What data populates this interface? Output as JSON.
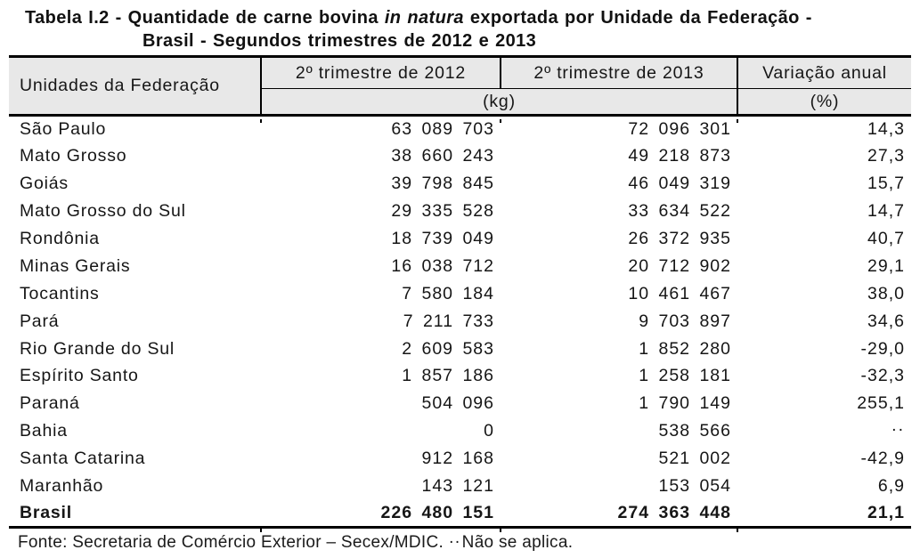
{
  "title": {
    "line1_normal": "Tabela I.2 - Quantidade de carne bovina ",
    "line1_italic": "in natura",
    "line1_rest": " exportada por Unidade da Federação -",
    "line2": "Brasil - Segundos trimestres de 2012 e 2013"
  },
  "header": {
    "units": "Unidades da Federação",
    "q2012": "2º trimestre de 2012",
    "q2013": "2º trimestre de 2013",
    "variation": "Variação anual",
    "kg": "(kg)",
    "pct": "(%)"
  },
  "chart_data": {
    "type": "table",
    "title": "Tabela I.2 - Quantidade de carne bovina in natura exportada por Unidade da Federação - Brasil - Segundos trimestres de 2012 e 2013",
    "columns": [
      "Unidades da Federação",
      "2º trimestre de 2012 (kg)",
      "2º trimestre de 2013 (kg)",
      "Variação anual (%)"
    ],
    "rows": [
      [
        "São Paulo",
        "63 089 703",
        "72 096 301",
        "14,3"
      ],
      [
        "Mato Grosso",
        "38 660 243",
        "49 218 873",
        "27,3"
      ],
      [
        "Goiás",
        "39 798 845",
        "46 049 319",
        "15,7"
      ],
      [
        "Mato Grosso do Sul",
        "29 335 528",
        "33 634 522",
        "14,7"
      ],
      [
        "Rondônia",
        "18 739 049",
        "26 372 935",
        "40,7"
      ],
      [
        "Minas Gerais",
        "16 038 712",
        "20 712 902",
        "29,1"
      ],
      [
        "Tocantins",
        "7 580 184",
        "10 461 467",
        "38,0"
      ],
      [
        "Pará",
        "7 211 733",
        "9 703 897",
        "34,6"
      ],
      [
        "Rio Grande do Sul",
        "2 609 583",
        "1 852 280",
        "-29,0"
      ],
      [
        "Espírito Santo",
        "1 857 186",
        "1 258 181",
        "-32,3"
      ],
      [
        "Paraná",
        "504 096",
        "1 790 149",
        "255,1"
      ],
      [
        "Bahia",
        "0",
        "538 566",
        ".."
      ],
      [
        "Santa Catarina",
        "912 168",
        "521 002",
        "-42,9"
      ],
      [
        "Maranhão",
        "143 121",
        "153 054",
        "6,9"
      ]
    ],
    "total_row": [
      "Brasil",
      "226 480 151",
      "274 363 448",
      "21,1"
    ]
  },
  "footer": {
    "source": "Fonte: Secretaria de Comércio Exterior – Secex/MDIC.",
    "marker": "..",
    "note": "Não se aplica."
  },
  "colors": {
    "header_bg": "#e8e8e8",
    "rule": "#000000",
    "text": "#1a1a1a"
  }
}
